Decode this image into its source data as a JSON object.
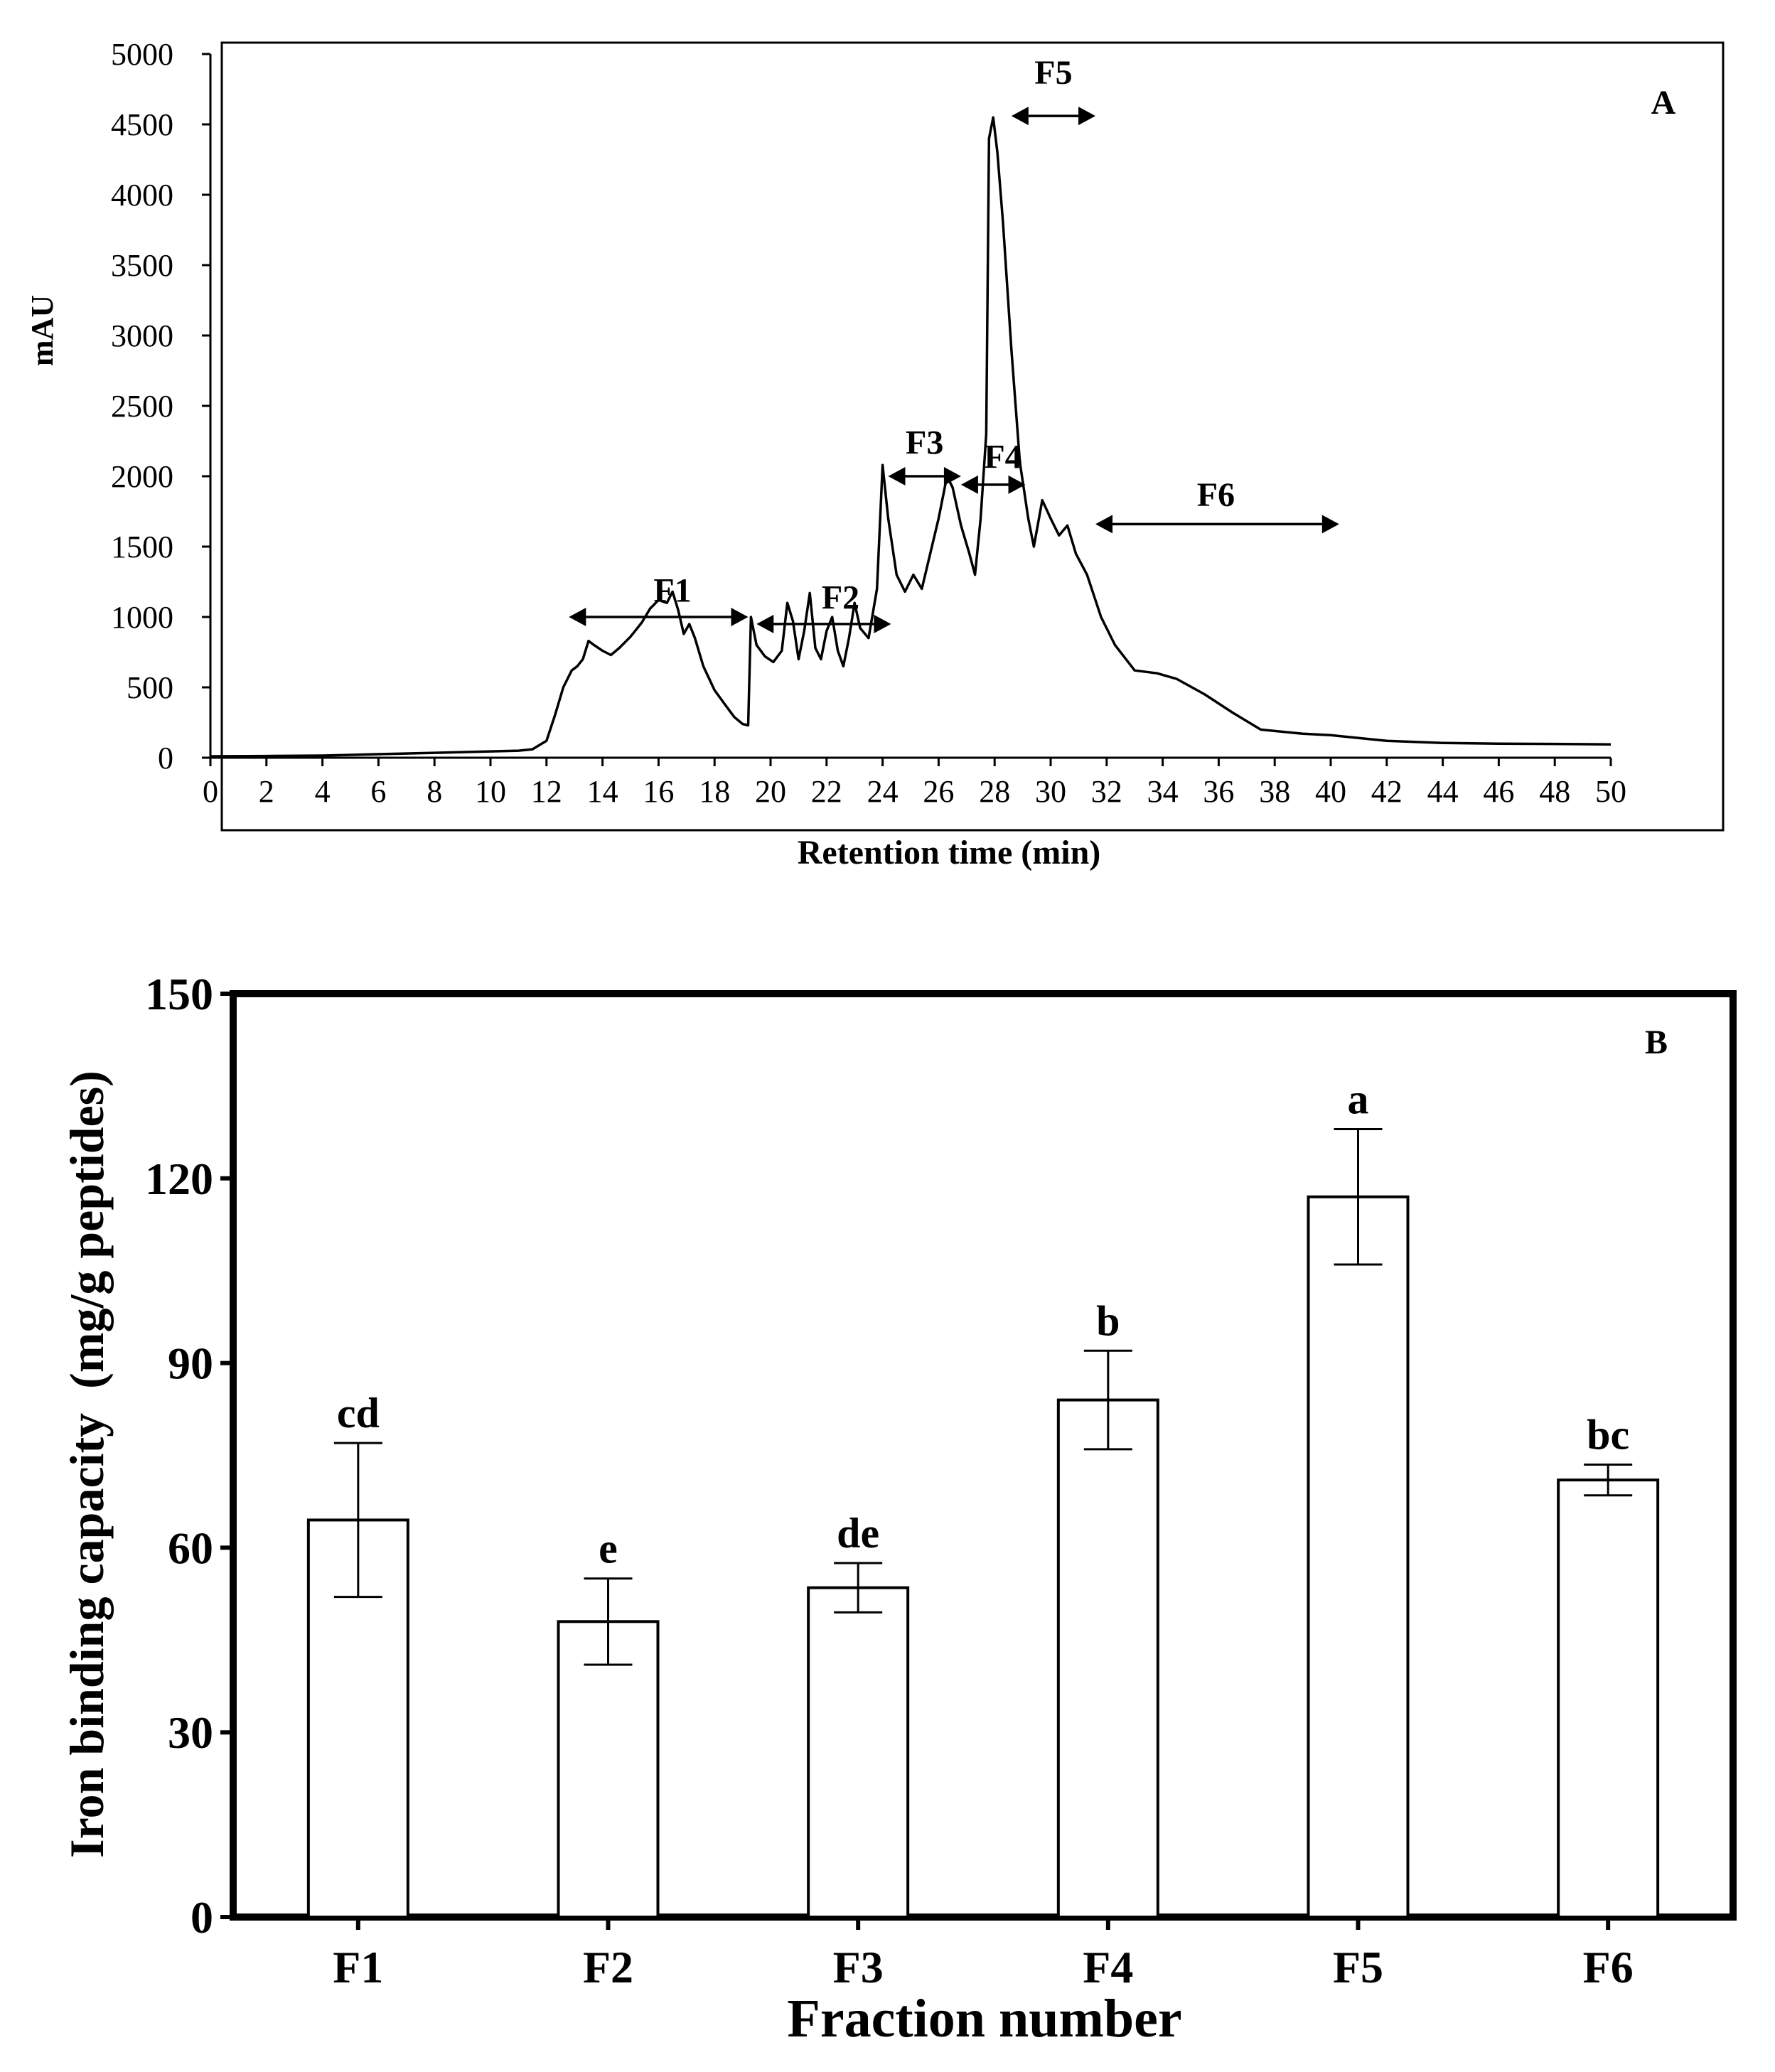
{
  "chart_data": [
    {
      "panel": "A",
      "type": "line",
      "title": "",
      "xlabel": "Retention time (min)",
      "ylabel": "mAU",
      "xlim": [
        0,
        50
      ],
      "ylim": [
        0,
        5000
      ],
      "xticks": [
        0,
        2,
        4,
        6,
        8,
        10,
        12,
        14,
        16,
        18,
        20,
        22,
        24,
        26,
        28,
        30,
        32,
        34,
        36,
        38,
        40,
        42,
        44,
        46,
        48,
        50
      ],
      "yticks": [
        0,
        500,
        1000,
        1500,
        2000,
        2500,
        3000,
        3500,
        4000,
        4500,
        5000
      ],
      "series": [
        {
          "name": "chromatogram",
          "points": [
            [
              0,
              10
            ],
            [
              2,
              12
            ],
            [
              4,
              15
            ],
            [
              6,
              25
            ],
            [
              8,
              35
            ],
            [
              10,
              45
            ],
            [
              11,
              50
            ],
            [
              11.5,
              60
            ],
            [
              12,
              120
            ],
            [
              12.3,
              300
            ],
            [
              12.6,
              500
            ],
            [
              12.9,
              620
            ],
            [
              13.1,
              650
            ],
            [
              13.3,
              700
            ],
            [
              13.5,
              830
            ],
            [
              13.7,
              800
            ],
            [
              14,
              760
            ],
            [
              14.3,
              730
            ],
            [
              14.6,
              780
            ],
            [
              15,
              860
            ],
            [
              15.4,
              960
            ],
            [
              15.7,
              1060
            ],
            [
              16,
              1120
            ],
            [
              16.3,
              1100
            ],
            [
              16.5,
              1180
            ],
            [
              16.7,
              1050
            ],
            [
              16.9,
              880
            ],
            [
              17.1,
              950
            ],
            [
              17.3,
              850
            ],
            [
              17.6,
              650
            ],
            [
              18,
              480
            ],
            [
              18.4,
              370
            ],
            [
              18.7,
              290
            ],
            [
              19.0,
              240
            ],
            [
              19.2,
              230
            ],
            [
              19.3,
              1000
            ],
            [
              19.5,
              800
            ],
            [
              19.8,
              720
            ],
            [
              20.1,
              680
            ],
            [
              20.4,
              760
            ],
            [
              20.6,
              1100
            ],
            [
              20.8,
              970
            ],
            [
              21.0,
              700
            ],
            [
              21.2,
              900
            ],
            [
              21.4,
              1170
            ],
            [
              21.6,
              780
            ],
            [
              21.8,
              700
            ],
            [
              22.0,
              900
            ],
            [
              22.2,
              1000
            ],
            [
              22.4,
              760
            ],
            [
              22.6,
              650
            ],
            [
              22.8,
              850
            ],
            [
              23.0,
              1100
            ],
            [
              23.2,
              920
            ],
            [
              23.5,
              850
            ],
            [
              23.8,
              1200
            ],
            [
              24.0,
              2080
            ],
            [
              24.2,
              1700
            ],
            [
              24.5,
              1300
            ],
            [
              24.8,
              1180
            ],
            [
              25.1,
              1300
            ],
            [
              25.4,
              1200
            ],
            [
              25.7,
              1450
            ],
            [
              26.0,
              1700
            ],
            [
              26.3,
              2000
            ],
            [
              26.5,
              1920
            ],
            [
              26.8,
              1650
            ],
            [
              27.1,
              1450
            ],
            [
              27.3,
              1300
            ],
            [
              27.5,
              1700
            ],
            [
              27.7,
              2300
            ],
            [
              27.8,
              4400
            ],
            [
              27.95,
              4550
            ],
            [
              28.1,
              4300
            ],
            [
              28.3,
              3800
            ],
            [
              28.6,
              2900
            ],
            [
              28.9,
              2100
            ],
            [
              29.2,
              1700
            ],
            [
              29.4,
              1500
            ],
            [
              29.7,
              1830
            ],
            [
              30.0,
              1700
            ],
            [
              30.3,
              1580
            ],
            [
              30.6,
              1650
            ],
            [
              30.9,
              1450
            ],
            [
              31.3,
              1300
            ],
            [
              31.8,
              1000
            ],
            [
              32.3,
              800
            ],
            [
              33.0,
              620
            ],
            [
              33.8,
              600
            ],
            [
              34.5,
              560
            ],
            [
              35.5,
              450
            ],
            [
              36.5,
              320
            ],
            [
              37.5,
              200
            ],
            [
              39,
              170
            ],
            [
              40,
              160
            ],
            [
              42,
              120
            ],
            [
              44,
              105
            ],
            [
              46,
              100
            ],
            [
              48,
              98
            ],
            [
              50,
              95
            ]
          ]
        }
      ],
      "annotations": [
        {
          "label": "F1",
          "from": 12.8,
          "to": 19.2,
          "y": 1000,
          "label_x": 16.5,
          "label_y": 1200
        },
        {
          "label": "F2",
          "from": 19.5,
          "to": 24.3,
          "y": 950,
          "label_x": 22.5,
          "label_y": 1150
        },
        {
          "label": "F3",
          "from": 24.2,
          "to": 26.8,
          "y": 2000,
          "label_x": 25.5,
          "label_y": 2250
        },
        {
          "label": "F4",
          "from": 26.8,
          "to": 29.1,
          "y": 1940,
          "label_x": 28.3,
          "label_y": 2150
        },
        {
          "label": "F5",
          "from": 28.6,
          "to": 31.6,
          "y": 4560,
          "label_x": 30.1,
          "label_y": 4880
        },
        {
          "label": "F6",
          "from": 31.6,
          "to": 40.3,
          "y": 1660,
          "label_x": 35.9,
          "label_y": 1880
        }
      ],
      "panel_label": "A"
    },
    {
      "panel": "B",
      "type": "bar",
      "title": "",
      "xlabel": "Fraction number",
      "ylabel": "Iron binding capacity  (mg/g peptides)",
      "ylim": [
        0,
        150
      ],
      "yticks": [
        0,
        30,
        60,
        90,
        120,
        150
      ],
      "categories": [
        "F1",
        "F2",
        "F3",
        "F4",
        "F5",
        "F6"
      ],
      "values": [
        64.5,
        48,
        53.5,
        84,
        117,
        71
      ],
      "errors": [
        12.5,
        7,
        4,
        8,
        11,
        2.5
      ],
      "significance_letters": [
        "cd",
        "e",
        "de",
        "b",
        "a",
        "bc"
      ],
      "panel_label": "B"
    }
  ]
}
